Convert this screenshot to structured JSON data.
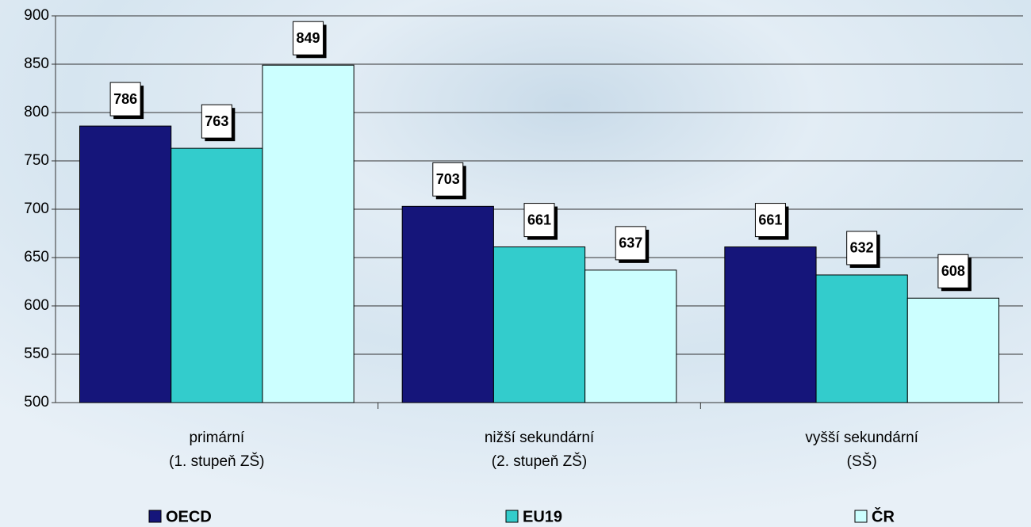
{
  "chart_data": {
    "type": "bar",
    "categories": [
      [
        "primární",
        "(1. stupeň ZŠ)"
      ],
      [
        "nižší sekundární",
        "(2. stupeň ZŠ)"
      ],
      [
        "vyšší sekundární",
        "(SŠ)"
      ]
    ],
    "series": [
      {
        "name": "OECD",
        "color": "#15157a",
        "values": [
          786,
          703,
          661
        ]
      },
      {
        "name": "EU19",
        "color": "#33cccc",
        "values": [
          763,
          661,
          632
        ]
      },
      {
        "name": "ČR",
        "color": "#ccffff",
        "values": [
          849,
          637,
          608
        ]
      }
    ],
    "ylim": [
      500,
      900
    ],
    "yticks": [
      500,
      550,
      600,
      650,
      700,
      750,
      800,
      850,
      900
    ],
    "grid": true
  }
}
